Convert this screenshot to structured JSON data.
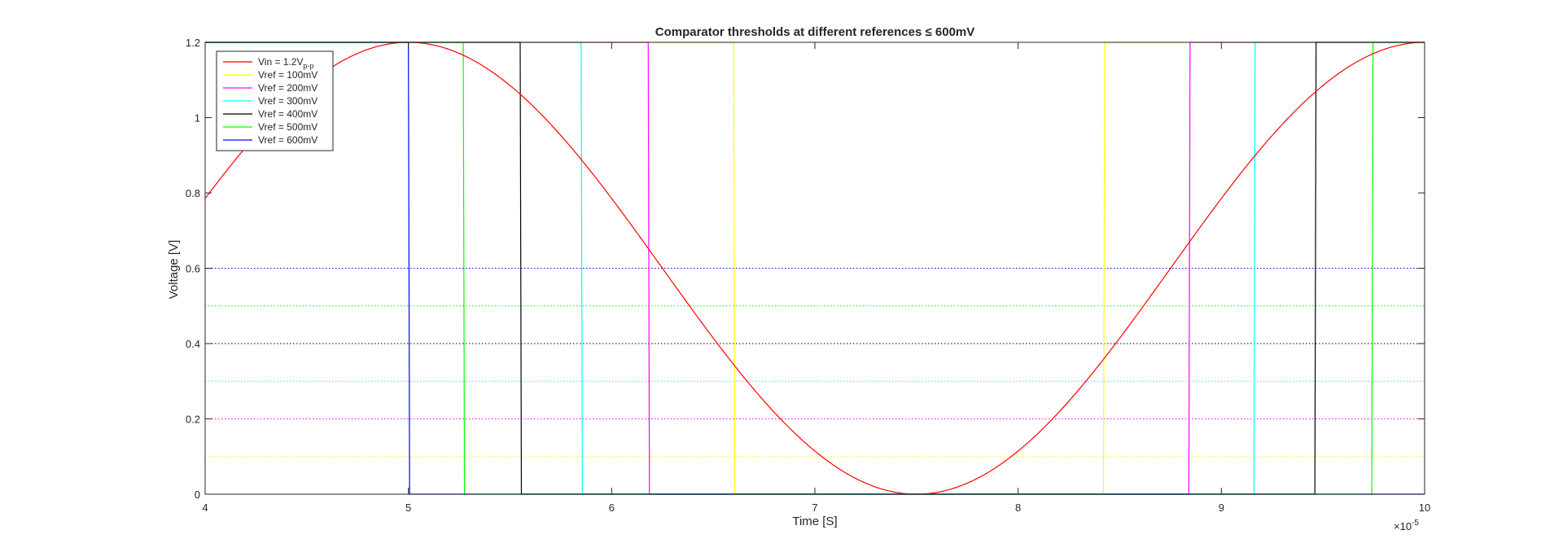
{
  "chart_data": {
    "type": "line",
    "title": "Comparator thresholds at different references ≤ 600mV",
    "xlabel": "Time [S]",
    "ylabel": "Voltage [V]",
    "xlim": [
      4,
      10
    ],
    "ylim": [
      0,
      1.2
    ],
    "x_exponent_label": "×10",
    "x_exponent_power": "-5",
    "x_ticks": [
      "4",
      "5",
      "6",
      "7",
      "8",
      "9",
      "10"
    ],
    "y_ticks": [
      "0",
      "0.2",
      "0.4",
      "0.6",
      "0.8",
      "1",
      "1.2"
    ],
    "legend_position": "top-left",
    "grid": false,
    "input_signal": {
      "name": "Vin = 1.2V",
      "name_sub": "p-p",
      "color": "#ff0000",
      "kind": "sine",
      "amplitude": 0.6,
      "offset": 0.6,
      "period": 5,
      "minimum_at": 7.5
    },
    "series": [
      {
        "name": "Vref = 100mV",
        "color": "#ffff00",
        "threshold": 0.1,
        "high": 1.2,
        "low": 0,
        "edges": [
          {
            "x": 6.6,
            "to": "low"
          },
          {
            "x": 8.42,
            "to": "high"
          }
        ]
      },
      {
        "name": "Vref = 200mV",
        "color": "#ff00ff",
        "threshold": 0.2,
        "high": 1.2,
        "low": 0,
        "edges": [
          {
            "x": 6.18,
            "to": "low"
          },
          {
            "x": 8.84,
            "to": "high"
          }
        ]
      },
      {
        "name": "Vref = 300mV",
        "color": "#00ffff",
        "threshold": 0.3,
        "high": 1.2,
        "low": 0,
        "edges": [
          {
            "x": 5.85,
            "to": "low"
          },
          {
            "x": 9.16,
            "to": "high"
          }
        ]
      },
      {
        "name": "Vref = 400mV",
        "color": "#000000",
        "threshold": 0.4,
        "high": 1.2,
        "low": 0,
        "edges": [
          {
            "x": 5.55,
            "to": "low"
          },
          {
            "x": 9.46,
            "to": "high"
          }
        ]
      },
      {
        "name": "Vref = 500mV",
        "color": "#00ff00",
        "threshold": 0.5,
        "high": 1.2,
        "low": 0,
        "edges": [
          {
            "x": 5.27,
            "to": "low"
          },
          {
            "x": 9.74,
            "to": "high"
          }
        ]
      },
      {
        "name": "Vref = 600mV",
        "color": "#0000ff",
        "threshold": 0.6,
        "high": 1.2,
        "low": 0,
        "edges": [
          {
            "x": 5.0,
            "to": "low"
          }
        ]
      }
    ]
  }
}
